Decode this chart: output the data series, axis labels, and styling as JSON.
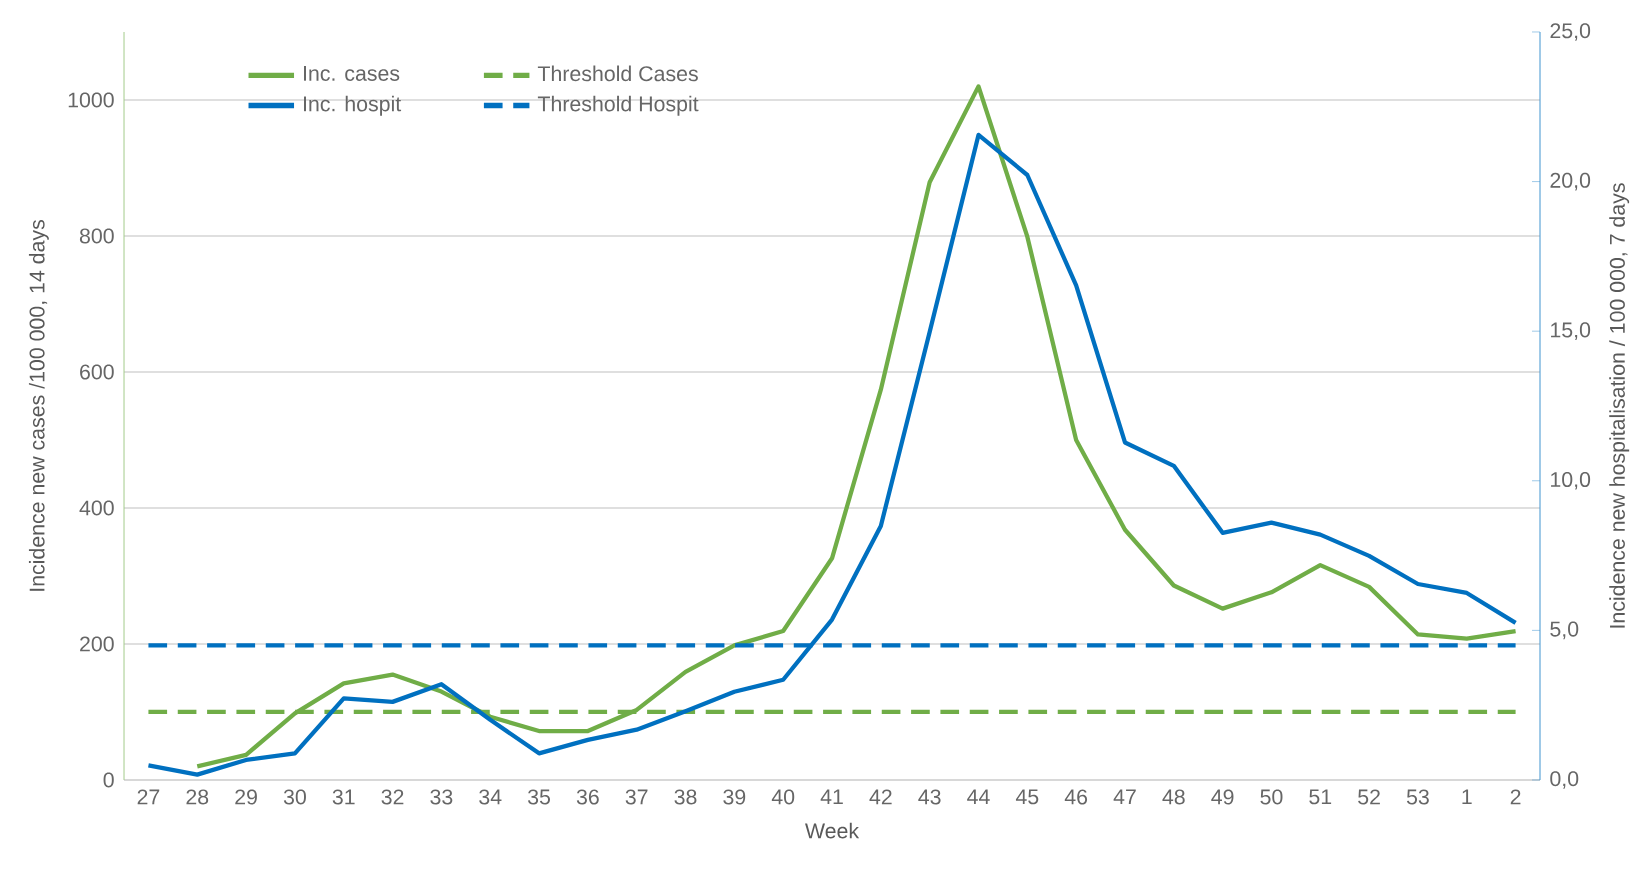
{
  "chart_data": {
    "type": "line",
    "xlabel": "Week",
    "ylabel": "Incidence new cases /100 000, 14 days",
    "y2label": "Incidence new hospitalisation / 100 000, 7 days",
    "categories": [
      "27",
      "28",
      "29",
      "30",
      "31",
      "32",
      "33",
      "34",
      "35",
      "36",
      "37",
      "38",
      "39",
      "40",
      "41",
      "42",
      "43",
      "44",
      "45",
      "46",
      "47",
      "48",
      "49",
      "50",
      "51",
      "52",
      "53",
      "1",
      "2"
    ],
    "series": [
      {
        "name": "Inc. cases",
        "color": "#70ad47",
        "line_style": "solid",
        "values": [
          null,
          20,
          37,
          98,
          142,
          155,
          130,
          93,
          72,
          72,
          103,
          159,
          198,
          219,
          326,
          574,
          879,
          1020,
          799,
          500,
          368,
          286,
          252,
          276,
          316,
          284,
          214,
          208,
          219
        ]
      },
      {
        "name": "Threshold Cases",
        "color": "#70ad47",
        "line_style": "dashed",
        "values": [
          100,
          100,
          100,
          100,
          100,
          100,
          100,
          100,
          100,
          100,
          100,
          100,
          100,
          100,
          100,
          100,
          100,
          100,
          100,
          100,
          100,
          100,
          100,
          100,
          100,
          100,
          100,
          100,
          100
        ]
      },
      {
        "name": "Inc. hospit",
        "color": "#0070c0",
        "line_style": "solid",
        "axis": "y2",
        "values": [
          0.49,
          0.18,
          0.67,
          0.89,
          2.73,
          2.61,
          3.2,
          2.01,
          0.89,
          1.34,
          1.68,
          2.3,
          2.95,
          3.35,
          5.36,
          8.49,
          14.97,
          21.56,
          20.22,
          16.53,
          11.28,
          10.5,
          8.26,
          8.6,
          8.2,
          7.49,
          6.55,
          6.25,
          5.25
        ]
      },
      {
        "name": "Threshold Hospit",
        "color": "#0070c0",
        "line_style": "dashed",
        "axis": "y2",
        "values": [
          4.5,
          4.5,
          4.5,
          4.5,
          4.5,
          4.5,
          4.5,
          4.5,
          4.5,
          4.5,
          4.5,
          4.5,
          4.5,
          4.5,
          4.5,
          4.5,
          4.5,
          4.5,
          4.5,
          4.5,
          4.5,
          4.5,
          4.5,
          4.5,
          4.5,
          4.5,
          4.5,
          4.5,
          4.5
        ]
      }
    ],
    "ylim": [
      0,
      1100
    ],
    "yticks": [
      0,
      200,
      400,
      600,
      800,
      1000
    ],
    "y2lim": [
      0,
      25
    ],
    "y2ticks": [
      {
        "value": 0,
        "label": "0,0"
      },
      {
        "value": 5,
        "label": "5,0"
      },
      {
        "value": 10,
        "label": "10,0"
      },
      {
        "value": 15,
        "label": "15,0"
      },
      {
        "value": 20,
        "label": "20,0"
      },
      {
        "value": 25,
        "label": "25,0"
      }
    ],
    "grid": "y",
    "legend": "top left",
    "marker": "none"
  }
}
